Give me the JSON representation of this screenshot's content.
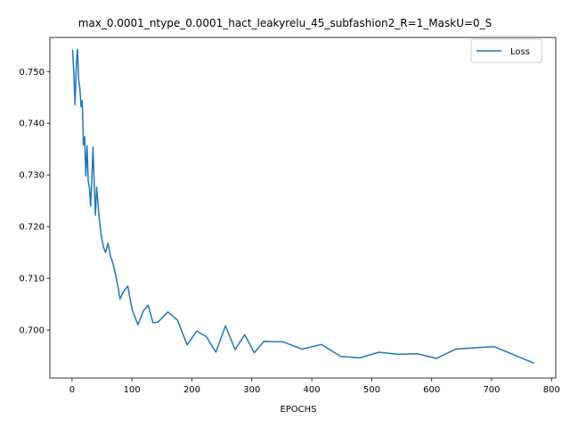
{
  "chart_data": {
    "type": "line",
    "title": "max_0.0001_ntype_0.0001_hact_leakyrelu_45_subfashion2_R=1_MaskU=0_S",
    "xlabel": "EPOCHS",
    "ylabel": "",
    "xlim": [
      -37,
      807
    ],
    "ylim": [
      0.6907,
      0.7566
    ],
    "xticks": [
      0,
      100,
      200,
      300,
      400,
      500,
      600,
      700,
      800
    ],
    "yticks": [
      0.7,
      0.71,
      0.72,
      0.73,
      0.74,
      0.75
    ],
    "ytick_labels": [
      "0.700",
      "0.710",
      "0.720",
      "0.730",
      "0.740",
      "0.750"
    ],
    "grid": false,
    "legend_position": "top-right",
    "series": [
      {
        "name": "Loss",
        "color": "#1f77b4",
        "x": [
          1,
          3,
          5,
          7,
          9,
          11,
          13,
          15,
          17,
          19,
          21,
          23,
          25,
          27,
          29,
          31,
          33,
          35,
          37,
          39,
          41,
          43,
          45,
          48,
          52,
          56,
          60,
          64,
          68,
          72,
          77,
          80,
          86,
          93,
          100,
          110,
          119,
          127,
          135,
          143,
          160,
          176,
          192,
          208,
          224,
          240,
          256,
          272,
          288,
          304,
          320,
          352,
          384,
          416,
          448,
          480,
          512,
          544,
          576,
          608,
          640,
          704,
          770
        ],
        "y": [
          0.7541,
          0.7495,
          0.7436,
          0.751,
          0.7543,
          0.7484,
          0.7468,
          0.7432,
          0.7444,
          0.7358,
          0.7374,
          0.7298,
          0.7356,
          0.7288,
          0.7276,
          0.724,
          0.729,
          0.7354,
          0.7283,
          0.7222,
          0.7276,
          0.7251,
          0.722,
          0.7188,
          0.7162,
          0.715,
          0.7168,
          0.7143,
          0.713,
          0.711,
          0.7082,
          0.706,
          0.7075,
          0.7085,
          0.704,
          0.701,
          0.7037,
          0.7048,
          0.7014,
          0.7015,
          0.7035,
          0.7019,
          0.6971,
          0.6998,
          0.6987,
          0.6957,
          0.7008,
          0.6962,
          0.6991,
          0.6956,
          0.6978,
          0.6977,
          0.6963,
          0.6972,
          0.6949,
          0.6946,
          0.6957,
          0.6953,
          0.6954,
          0.6945,
          0.6963,
          0.6968,
          0.6936
        ]
      }
    ]
  }
}
